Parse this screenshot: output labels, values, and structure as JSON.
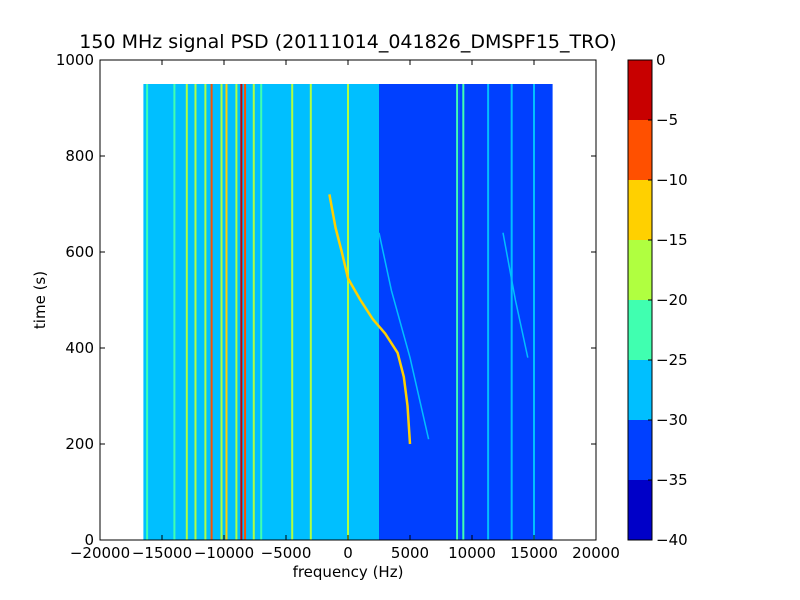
{
  "chart_data": {
    "type": "heatmap",
    "title": "150 MHz signal PSD (20111014_041826_DMSPF15_TRO)",
    "xlabel": "frequency (Hz)",
    "ylabel": "time (s)",
    "xlim": [
      -20000,
      20000
    ],
    "ylim": [
      0,
      1000
    ],
    "x_ticks": [
      -20000,
      -15000,
      -10000,
      -5000,
      0,
      5000,
      10000,
      15000,
      20000
    ],
    "x_tick_labels": [
      "−20000",
      "−15000",
      "−10000",
      "−5000",
      "0",
      "5000",
      "10000",
      "15000",
      "20000"
    ],
    "y_ticks": [
      0,
      200,
      400,
      600,
      800,
      1000
    ],
    "y_tick_labels": [
      "0",
      "200",
      "400",
      "600",
      "800",
      "1000"
    ],
    "data_extent": {
      "x": [
        -16500,
        16500
      ],
      "y": [
        0,
        950
      ]
    },
    "colorbar": {
      "range": [
        -40,
        0
      ],
      "levels": [
        -40,
        -35,
        -30,
        -25,
        -20,
        -15,
        -10,
        -5,
        0
      ],
      "tick_labels": [
        "−40",
        "−35",
        "−30",
        "−25",
        "−20",
        "−15",
        "−10",
        "−5",
        "0"
      ],
      "colors": [
        "#0000c8",
        "#0040ff",
        "#00bfff",
        "#40ffb0",
        "#b0ff40",
        "#ffd000",
        "#ff5000",
        "#c80000"
      ]
    },
    "regions": [
      {
        "x": [
          -16500,
          2500
        ],
        "level": -27
      },
      {
        "x": [
          2500,
          9000
        ],
        "level": -32
      },
      {
        "x": [
          9000,
          16500
        ],
        "level": -33
      }
    ],
    "lines": [
      {
        "x": [
          -16200,
          -16200
        ],
        "t": [
          0,
          950
        ],
        "level": -22
      },
      {
        "x": [
          -14000,
          -14000
        ],
        "t": [
          0,
          950
        ],
        "level": -22
      },
      {
        "x": [
          -13000,
          -13000
        ],
        "t": [
          0,
          950
        ],
        "level": -20
      },
      {
        "x": [
          -12300,
          -12300
        ],
        "t": [
          0,
          950
        ],
        "level": -18
      },
      {
        "x": [
          -11500,
          -11500
        ],
        "t": [
          0,
          950
        ],
        "level": -18
      },
      {
        "x": [
          -11000,
          -11000
        ],
        "t": [
          0,
          950
        ],
        "level": -8
      },
      {
        "x": [
          -10200,
          -10200
        ],
        "t": [
          0,
          950
        ],
        "level": -20
      },
      {
        "x": [
          -9800,
          -9800
        ],
        "t": [
          0,
          950
        ],
        "level": -14
      },
      {
        "x": [
          -9000,
          -9000
        ],
        "t": [
          0,
          950
        ],
        "level": -20
      },
      {
        "x": [
          -8600,
          -8600
        ],
        "t": [
          0,
          950
        ],
        "level": -5
      },
      {
        "x": [
          -8300,
          -8300
        ],
        "t": [
          0,
          950
        ],
        "level": -9
      },
      {
        "x": [
          -7600,
          -7600
        ],
        "t": [
          0,
          950
        ],
        "level": -20
      },
      {
        "x": [
          -7000,
          -7000
        ],
        "t": [
          0,
          950
        ],
        "level": -23
      },
      {
        "x": [
          -4500,
          -4500
        ],
        "t": [
          0,
          950
        ],
        "level": -18
      },
      {
        "x": [
          -3000,
          -3000
        ],
        "t": [
          0,
          950
        ],
        "level": -20
      },
      {
        "x": [
          0,
          0
        ],
        "t": [
          0,
          950
        ],
        "level": -20
      },
      {
        "x": [
          8800,
          8800
        ],
        "t": [
          0,
          950
        ],
        "level": -23
      },
      {
        "x": [
          9300,
          9300
        ],
        "t": [
          0,
          950
        ],
        "level": -24
      },
      {
        "x": [
          11300,
          11300
        ],
        "t": [
          0,
          950
        ],
        "level": -27
      },
      {
        "x": [
          13200,
          13200
        ],
        "t": [
          0,
          950
        ],
        "level": -27
      },
      {
        "x": [
          15000,
          15000
        ],
        "t": [
          0,
          950
        ],
        "level": -28
      }
    ],
    "doppler_curve": {
      "level": -15,
      "points": [
        [
          -1500,
          720
        ],
        [
          -1000,
          650
        ],
        [
          -500,
          600
        ],
        [
          0,
          545
        ],
        [
          1000,
          500
        ],
        [
          2000,
          460
        ],
        [
          3000,
          430
        ],
        [
          4000,
          390
        ],
        [
          4500,
          340
        ],
        [
          4800,
          280
        ],
        [
          5000,
          200
        ]
      ]
    },
    "faint_curves": [
      {
        "level": -26,
        "points": [
          [
            2500,
            640
          ],
          [
            3500,
            520
          ],
          [
            5000,
            380
          ],
          [
            6500,
            210
          ]
        ]
      },
      {
        "level": -28,
        "points": [
          [
            12500,
            640
          ],
          [
            13500,
            500
          ],
          [
            14500,
            380
          ]
        ]
      }
    ]
  }
}
